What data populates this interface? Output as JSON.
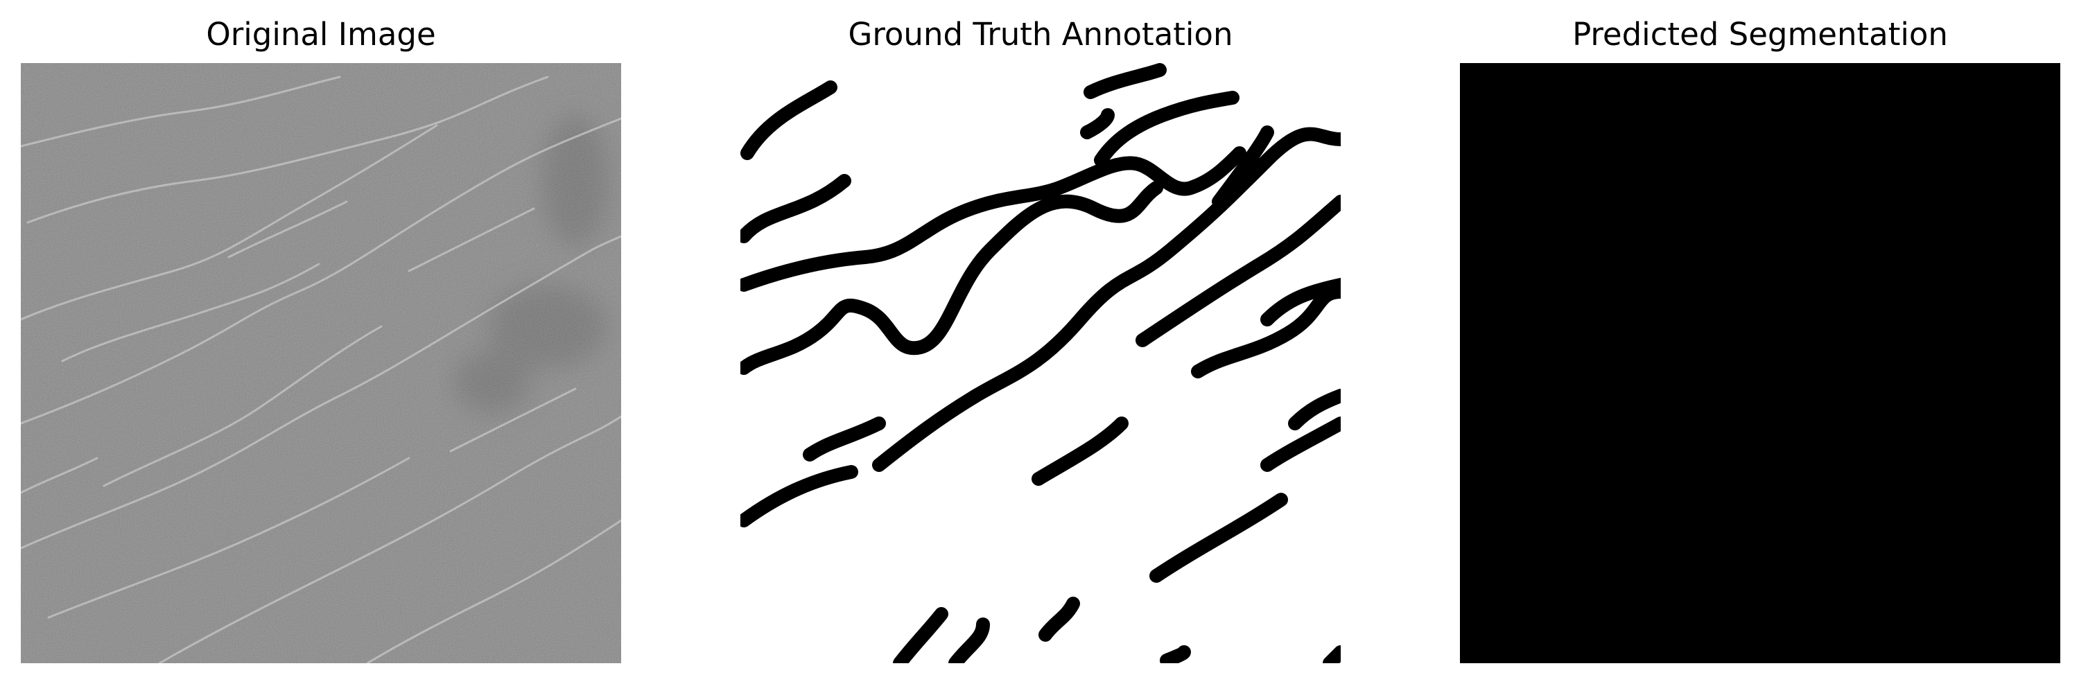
{
  "panels": [
    {
      "title": "Original Image",
      "image": "grayscale-crack-texture"
    },
    {
      "title": "Ground Truth Annotation",
      "image": "binary-crack-mask"
    },
    {
      "title": "Predicted Segmentation",
      "image": "empty-prediction-mask"
    }
  ],
  "colors": {
    "background": "#ffffff",
    "texture_base": "#7c7c7c",
    "crack_highlight": "#c8c8c8",
    "mask_foreground": "#000000",
    "mask_background": "#ffffff"
  }
}
